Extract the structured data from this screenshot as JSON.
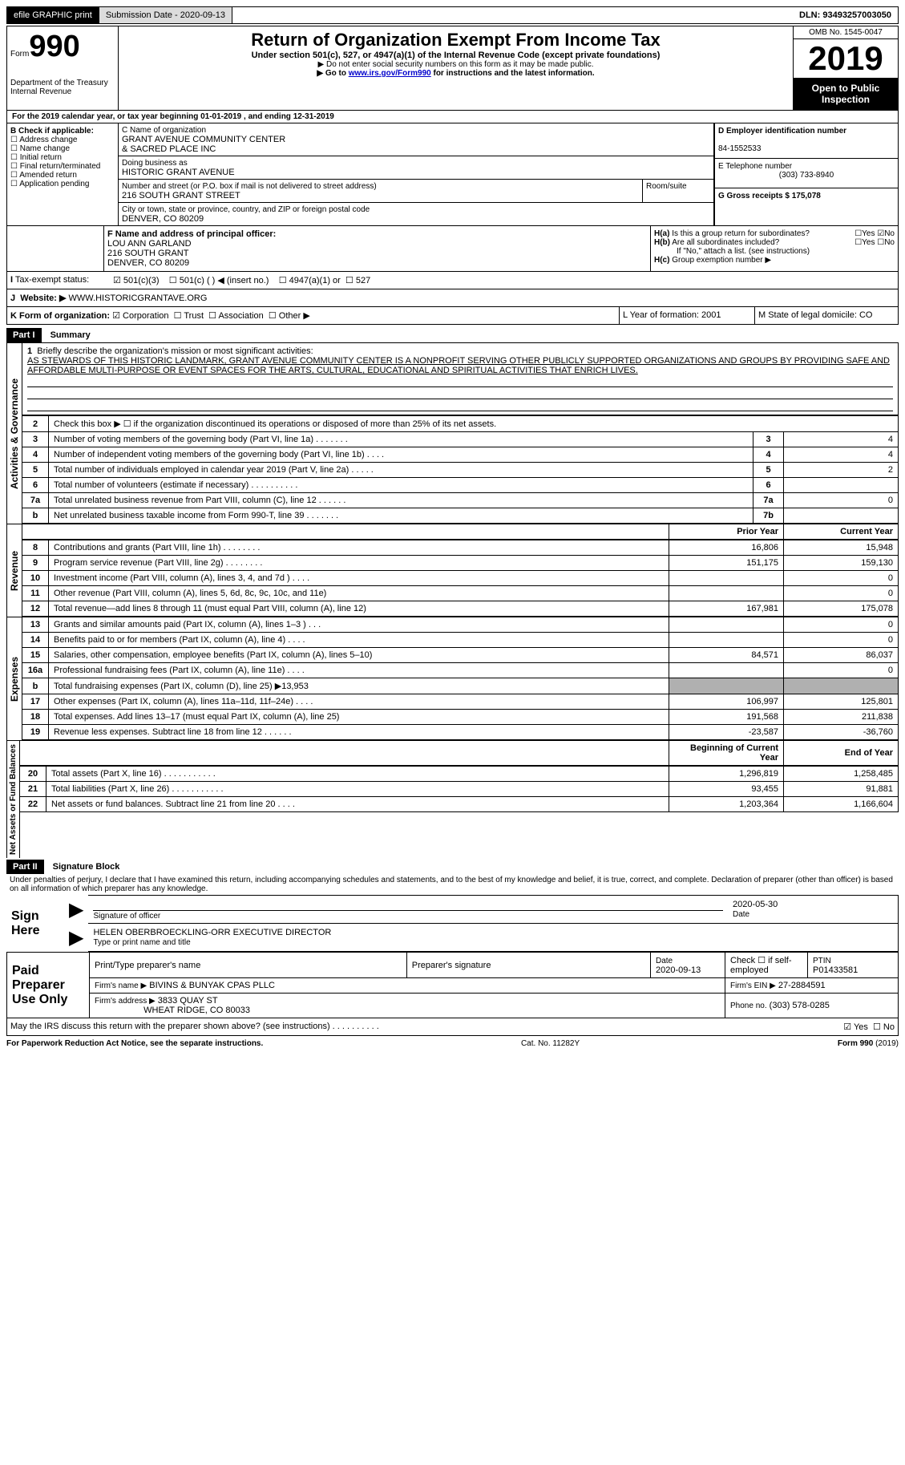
{
  "topbar": {
    "efile": "efile GRAPHIC print",
    "submission_label": "Submission Date - 2020-09-13",
    "dln_label": "DLN: 93493257003050"
  },
  "header": {
    "form_prefix": "Form",
    "form_number": "990",
    "dept": "Department of the Treasury\nInternal Revenue",
    "title": "Return of Organization Exempt From Income Tax",
    "subtitle": "Under section 501(c), 527, or 4947(a)(1) of the Internal Revenue Code (except private foundations)",
    "note1": "▶ Do not enter social security numbers on this form as it may be made public.",
    "note2_prefix": "▶ Go to ",
    "note2_link": "www.irs.gov/Form990",
    "note2_suffix": " for instructions and the latest information.",
    "omb": "OMB No. 1545-0047",
    "year": "2019",
    "open_public": "Open to Public Inspection"
  },
  "line_a": "For the 2019 calendar year, or tax year beginning 01-01-2019   , and ending 12-31-2019",
  "section_b": {
    "heading": "B Check if applicable:",
    "items": [
      "Address change",
      "Name change",
      "Initial return",
      "Final return/terminated",
      "Amended return",
      "Application pending"
    ]
  },
  "section_c": {
    "name_label": "C Name of organization",
    "name": "GRANT AVENUE COMMUNITY CENTER\n& SACRED PLACE INC",
    "dba_label": "Doing business as",
    "dba": "HISTORIC GRANT AVENUE",
    "addr_label": "Number and street (or P.O. box if mail is not delivered to street address)",
    "room_label": "Room/suite",
    "addr": "216 SOUTH GRANT STREET",
    "city_label": "City or town, state or province, country, and ZIP or foreign postal code",
    "city": "DENVER, CO  80209"
  },
  "section_d": {
    "label": "D Employer identification number",
    "value": "84-1552533"
  },
  "section_e": {
    "label": "E Telephone number",
    "value": "(303) 733-8940"
  },
  "section_g": {
    "label": "G Gross receipts $ 175,078"
  },
  "section_f": {
    "label": "F  Name and address of principal officer:",
    "name": "LOU ANN GARLAND",
    "addr1": "216 SOUTH GRANT",
    "addr2": "DENVER, CO  80209"
  },
  "section_h": {
    "a": "Is this a group return for subordinates?",
    "b": "Are all subordinates included?",
    "note": "If \"No,\" attach a list. (see instructions)",
    "c": "Group exemption number ▶"
  },
  "tax_exempt": {
    "label": "Tax-exempt status:",
    "opt1": "501(c)(3)",
    "opt2": "501(c) (  ) ◀ (insert no.)",
    "opt3": "4947(a)(1) or",
    "opt4": "527"
  },
  "line_j": {
    "label": "Website: ▶",
    "value": "WWW.HISTORICGRANTAVE.ORG"
  },
  "line_k": {
    "label": "K Form of organization:",
    "opts": [
      "Corporation",
      "Trust",
      "Association",
      "Other ▶"
    ]
  },
  "line_l": "L Year of formation: 2001",
  "line_m": "M State of legal domicile: CO",
  "part1": {
    "header": "Part I",
    "title": "Summary",
    "q1_label": "Briefly describe the organization's mission or most significant activities:",
    "q1_text": "AS STEWARDS OF THIS HISTORIC LANDMARK, GRANT AVENUE COMMUNITY CENTER IS A NONPROFIT SERVING OTHER PUBLICLY SUPPORTED ORGANIZATIONS AND GROUPS BY PROVIDING SAFE AND AFFORDABLE MULTI-PURPOSE OR EVENT SPACES FOR THE ARTS, CULTURAL, EDUCATIONAL AND SPIRITUAL ACTIVITIES THAT ENRICH LIVES.",
    "sections": {
      "gov": "Activities & Governance",
      "rev": "Revenue",
      "exp": "Expenses",
      "net": "Net Assets or Fund Balances"
    },
    "gov_rows": [
      {
        "n": "2",
        "t": "Check this box ▶ ☐  if the organization discontinued its operations or disposed of more than 25% of its net assets."
      },
      {
        "n": "3",
        "t": "Number of voting members of the governing body (Part VI, line 1a)  .   .   .   .   .   .   .",
        "box": "3",
        "v": "4"
      },
      {
        "n": "4",
        "t": "Number of independent voting members of the governing body (Part VI, line 1b)  .   .   .   .",
        "box": "4",
        "v": "4"
      },
      {
        "n": "5",
        "t": "Total number of individuals employed in calendar year 2019 (Part V, line 2a)  .   .   .   .   .",
        "box": "5",
        "v": "2"
      },
      {
        "n": "6",
        "t": "Total number of volunteers (estimate if necessary)   .   .   .   .   .   .   .   .   .   .",
        "box": "6",
        "v": ""
      },
      {
        "n": "7a",
        "t": "Total unrelated business revenue from Part VIII, column (C), line 12   .   .   .   .   .   .",
        "box": "7a",
        "v": "0"
      },
      {
        "n": "b",
        "t": "Net unrelated business taxable income from Form 990-T, line 39   .   .   .   .   .   .   .",
        "box": "7b",
        "v": ""
      }
    ],
    "prior_label": "Prior Year",
    "current_label": "Current Year",
    "rev_rows": [
      {
        "n": "8",
        "t": "Contributions and grants (Part VIII, line 1h)   .   .   .   .   .   .   .   .",
        "p": "16,806",
        "c": "15,948"
      },
      {
        "n": "9",
        "t": "Program service revenue (Part VIII, line 2g)   .   .   .   .   .   .   .   .",
        "p": "151,175",
        "c": "159,130"
      },
      {
        "n": "10",
        "t": "Investment income (Part VIII, column (A), lines 3, 4, and 7d )   .   .   .   .",
        "p": "",
        "c": "0"
      },
      {
        "n": "11",
        "t": "Other revenue (Part VIII, column (A), lines 5, 6d, 8c, 9c, 10c, and 11e)",
        "p": "",
        "c": "0"
      },
      {
        "n": "12",
        "t": "Total revenue—add lines 8 through 11 (must equal Part VIII, column (A), line 12)",
        "p": "167,981",
        "c": "175,078"
      }
    ],
    "exp_rows": [
      {
        "n": "13",
        "t": "Grants and similar amounts paid (Part IX, column (A), lines 1–3 )  .   .   .",
        "p": "",
        "c": "0"
      },
      {
        "n": "14",
        "t": "Benefits paid to or for members (Part IX, column (A), line 4)  .   .   .   .",
        "p": "",
        "c": "0"
      },
      {
        "n": "15",
        "t": "Salaries, other compensation, employee benefits (Part IX, column (A), lines 5–10)",
        "p": "84,571",
        "c": "86,037"
      },
      {
        "n": "16a",
        "t": "Professional fundraising fees (Part IX, column (A), line 11e)  .   .   .   .",
        "p": "",
        "c": "0"
      },
      {
        "n": "b",
        "t": "Total fundraising expenses (Part IX, column (D), line 25) ▶13,953",
        "p": "SHADE",
        "c": "SHADE"
      },
      {
        "n": "17",
        "t": "Other expenses (Part IX, column (A), lines 11a–11d, 11f–24e)  .   .   .   .",
        "p": "106,997",
        "c": "125,801"
      },
      {
        "n": "18",
        "t": "Total expenses. Add lines 13–17 (must equal Part IX, column (A), line 25)",
        "p": "191,568",
        "c": "211,838"
      },
      {
        "n": "19",
        "t": "Revenue less expenses. Subtract line 18 from line 12   .   .   .   .   .   .",
        "p": "-23,587",
        "c": "-36,760"
      }
    ],
    "boy_label": "Beginning of Current Year",
    "eoy_label": "End of Year",
    "net_rows": [
      {
        "n": "20",
        "t": "Total assets (Part X, line 16)  .   .   .   .   .   .   .   .   .   .   .",
        "p": "1,296,819",
        "c": "1,258,485"
      },
      {
        "n": "21",
        "t": "Total liabilities (Part X, line 26)  .   .   .   .   .   .   .   .   .   .   .",
        "p": "93,455",
        "c": "91,881"
      },
      {
        "n": "22",
        "t": "Net assets or fund balances. Subtract line 21 from line 20  .   .   .   .",
        "p": "1,203,364",
        "c": "1,166,604"
      }
    ]
  },
  "part2": {
    "header": "Part II",
    "title": "Signature Block",
    "decl": "Under penalties of perjury, I declare that I have examined this return, including accompanying schedules and statements, and to the best of my knowledge and belief, it is true, correct, and complete. Declaration of preparer (other than officer) is based on all information of which preparer has any knowledge.",
    "sign_here": "Sign Here",
    "sig_label": "Signature of officer",
    "date": "2020-05-30",
    "date_label": "Date",
    "name": "HELEN OBERBROECKLING-ORR  EXECUTIVE DIRECTOR",
    "name_label": "Type or print name and title",
    "paid": "Paid Preparer Use Only",
    "col1": "Print/Type preparer's name",
    "col2": "Preparer's signature",
    "col3_label": "Date",
    "col3": "2020-09-13",
    "col4_label": "Check ☐ if self-employed",
    "col5_label": "PTIN",
    "col5": "P01433581",
    "firm_name_label": "Firm's name    ▶",
    "firm_name": "BIVINS & BUNYAK CPAS PLLC",
    "firm_ein_label": "Firm's EIN ▶",
    "firm_ein": "27-2884591",
    "firm_addr_label": "Firm's address ▶",
    "firm_addr": "3833 QUAY ST",
    "firm_addr2": "WHEAT RIDGE, CO  80033",
    "phone_label": "Phone no.",
    "phone": "(303) 578-0285",
    "discuss": "May the IRS discuss this return with the preparer shown above? (see instructions)   .   .   .   .   .   .   .   .   .   ."
  },
  "footer": {
    "left": "For Paperwork Reduction Act Notice, see the separate instructions.",
    "mid": "Cat. No. 11282Y",
    "right": "Form 990 (2019)"
  }
}
